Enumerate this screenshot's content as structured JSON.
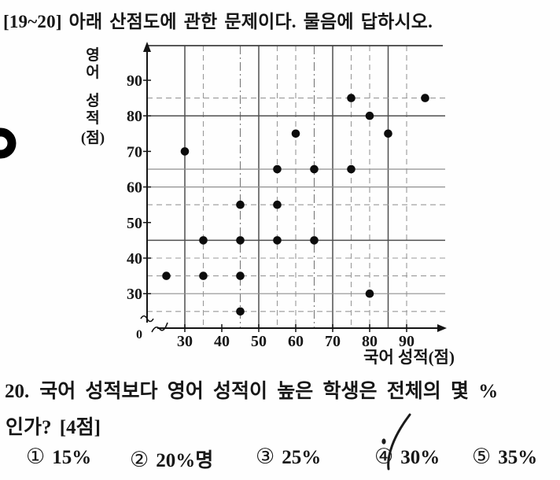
{
  "colors": {
    "ink": "#171717",
    "grid_dark": "#4f4f4f",
    "grid_light": "#8f8f8f",
    "grid_dashed": "#999999",
    "dot": "#0c0c0c",
    "pen": "#1b1b1b",
    "background": "#fefefe"
  },
  "header": {
    "text": "[19~20] 아래 산점도에 관한 문제이다. 물음에 답하시오."
  },
  "chart_data": {
    "type": "scatter",
    "title": "",
    "xlabel": "국어 성적(점)",
    "ylabel": "영어 성적(점)",
    "ylabel_stack": [
      "영",
      "어",
      "성",
      "적",
      "(점)"
    ],
    "origin_label": "0",
    "axis_break": true,
    "grid": true,
    "x_ticks": [
      30,
      40,
      50,
      60,
      70,
      80,
      90
    ],
    "y_ticks": [
      30,
      40,
      50,
      60,
      70,
      80,
      90
    ],
    "xlim": [
      20,
      100
    ],
    "ylim": [
      20,
      100
    ],
    "points": [
      [
        25,
        35
      ],
      [
        30,
        70
      ],
      [
        35,
        35
      ],
      [
        35,
        45
      ],
      [
        45,
        25
      ],
      [
        45,
        35
      ],
      [
        45,
        45
      ],
      [
        45,
        55
      ],
      [
        55,
        45
      ],
      [
        55,
        55
      ],
      [
        55,
        65
      ],
      [
        60,
        75
      ],
      [
        65,
        45
      ],
      [
        65,
        65
      ],
      [
        75,
        65
      ],
      [
        75,
        85
      ],
      [
        80,
        30
      ],
      [
        80,
        80
      ],
      [
        85,
        75
      ],
      [
        95,
        85
      ]
    ],
    "gridlines": {
      "vertical": [
        {
          "v": 30,
          "style": "solid-dark"
        },
        {
          "v": 35,
          "style": "dashed"
        },
        {
          "v": 45,
          "style": "dashdot"
        },
        {
          "v": 50,
          "style": "solid-dark"
        },
        {
          "v": 55,
          "style": "dashed"
        },
        {
          "v": 60,
          "style": "dashed"
        },
        {
          "v": 65,
          "style": "dashdot"
        },
        {
          "v": 70,
          "style": "solid-dark"
        },
        {
          "v": 75,
          "style": "dashed"
        },
        {
          "v": 80,
          "style": "dashed"
        },
        {
          "v": 85,
          "style": "solid-dark"
        },
        {
          "v": 90,
          "style": "dashed"
        }
      ],
      "horizontal": [
        {
          "v": 25,
          "style": "dashed"
        },
        {
          "v": 30,
          "style": "solid-light"
        },
        {
          "v": 35,
          "style": "dashed"
        },
        {
          "v": 40,
          "style": "dashed"
        },
        {
          "v": 45,
          "style": "solid-dark"
        },
        {
          "v": 55,
          "style": "dashed"
        },
        {
          "v": 60,
          "style": "solid-light"
        },
        {
          "v": 65,
          "style": "solid-light"
        },
        {
          "v": 80,
          "style": "solid-dark"
        },
        {
          "v": 85,
          "style": "dashed"
        }
      ]
    }
  },
  "question": {
    "number": "20.",
    "body_line1": "국어 성적보다 영어 성적이 높은 학생은 전체의 몇 %",
    "body_line2": "인가? [4점]",
    "choices": [
      {
        "marker": "①",
        "label": "15%",
        "marked": false
      },
      {
        "marker": "②",
        "label": "20%명",
        "marked": false
      },
      {
        "marker": "③",
        "label": "25%",
        "marked": false
      },
      {
        "marker": "④",
        "label": "30%",
        "marked": true
      },
      {
        "marker": "⑤",
        "label": "35%",
        "marked": false
      }
    ]
  },
  "pen_mark": {
    "type": "handwritten-check",
    "on_choice": "④ 30%"
  }
}
